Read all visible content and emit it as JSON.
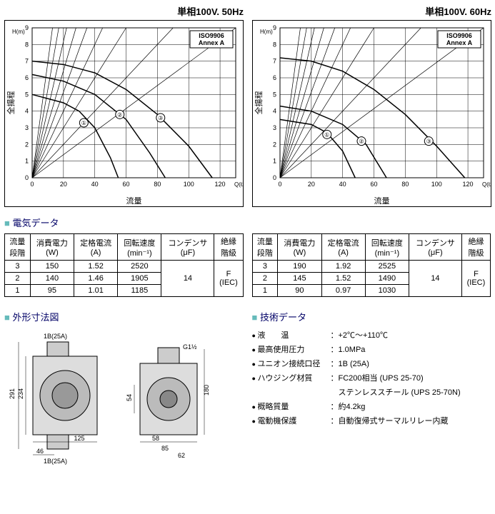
{
  "chartA": {
    "title": "単相100V. 50Hz",
    "iso": "ISO9906",
    "annex": "Annex A",
    "ylabel": "全揚程",
    "xlabel": "流量",
    "yunit": "H(m)",
    "xunit": "Q(ℓ/min)",
    "xlim": [
      0,
      130
    ],
    "xtick": 20,
    "ylim": [
      0,
      9
    ],
    "ytick": 1,
    "bg": "#ffffff",
    "grid": "#000000",
    "line_width": 1,
    "curves": [
      {
        "label": "①",
        "pts": [
          [
            0,
            5.0
          ],
          [
            20,
            4.5
          ],
          [
            30,
            4.0
          ],
          [
            40,
            3.0
          ],
          [
            50,
            1.2
          ],
          [
            55,
            0
          ]
        ]
      },
      {
        "label": "②",
        "pts": [
          [
            0,
            6.2
          ],
          [
            20,
            5.8
          ],
          [
            40,
            5.0
          ],
          [
            60,
            3.5
          ],
          [
            75,
            1.5
          ],
          [
            85,
            0
          ]
        ]
      },
      {
        "label": "③",
        "pts": [
          [
            0,
            7.0
          ],
          [
            20,
            6.8
          ],
          [
            40,
            6.3
          ],
          [
            60,
            5.3
          ],
          [
            80,
            3.8
          ],
          [
            100,
            1.9
          ],
          [
            115,
            0
          ]
        ]
      }
    ],
    "rising": [
      [
        [
          0,
          0
        ],
        [
          130,
          9
        ]
      ],
      [
        [
          0,
          0
        ],
        [
          90,
          9
        ]
      ],
      [
        [
          0,
          0
        ],
        [
          60,
          9
        ]
      ],
      [
        [
          0,
          0
        ],
        [
          45,
          9
        ]
      ],
      [
        [
          0,
          0
        ],
        [
          35,
          9
        ]
      ],
      [
        [
          0,
          0
        ],
        [
          28,
          9
        ]
      ],
      [
        [
          0,
          0
        ],
        [
          22,
          9
        ]
      ],
      [
        [
          0,
          0
        ],
        [
          17,
          9
        ]
      ],
      [
        [
          0,
          0
        ],
        [
          13,
          9
        ]
      ]
    ],
    "markers": [
      {
        "x": 33,
        "y": 3.3,
        "t": "①"
      },
      {
        "x": 56,
        "y": 3.8,
        "t": "②"
      },
      {
        "x": 82,
        "y": 3.6,
        "t": "③"
      }
    ]
  },
  "chartB": {
    "title": "単相100V. 60Hz",
    "iso": "ISO9906",
    "annex": "Annex A",
    "ylabel": "全揚程",
    "xlabel": "流量",
    "yunit": "H(m)",
    "xunit": "Q(ℓ/min)",
    "xlim": [
      0,
      130
    ],
    "xtick": 20,
    "ylim": [
      0,
      9
    ],
    "ytick": 1,
    "bg": "#ffffff",
    "grid": "#000000",
    "line_width": 1,
    "curves": [
      {
        "label": "①",
        "pts": [
          [
            0,
            3.5
          ],
          [
            20,
            3.2
          ],
          [
            30,
            2.7
          ],
          [
            40,
            1.6
          ],
          [
            48,
            0
          ]
        ]
      },
      {
        "label": "②",
        "pts": [
          [
            0,
            4.3
          ],
          [
            20,
            4.0
          ],
          [
            40,
            3.2
          ],
          [
            55,
            2.0
          ],
          [
            68,
            0
          ]
        ]
      },
      {
        "label": "③",
        "pts": [
          [
            0,
            7.2
          ],
          [
            20,
            7.0
          ],
          [
            40,
            6.4
          ],
          [
            60,
            5.3
          ],
          [
            80,
            3.8
          ],
          [
            100,
            1.9
          ],
          [
            118,
            0
          ]
        ]
      }
    ],
    "rising": [
      [
        [
          0,
          0
        ],
        [
          130,
          9
        ]
      ],
      [
        [
          0,
          0
        ],
        [
          90,
          9
        ]
      ],
      [
        [
          0,
          0
        ],
        [
          60,
          9
        ]
      ],
      [
        [
          0,
          0
        ],
        [
          45,
          9
        ]
      ],
      [
        [
          0,
          0
        ],
        [
          35,
          9
        ]
      ],
      [
        [
          0,
          0
        ],
        [
          28,
          9
        ]
      ],
      [
        [
          0,
          0
        ],
        [
          22,
          9
        ]
      ],
      [
        [
          0,
          0
        ],
        [
          17,
          9
        ]
      ],
      [
        [
          0,
          0
        ],
        [
          13,
          9
        ]
      ]
    ],
    "markers": [
      {
        "x": 30,
        "y": 2.6,
        "t": "①"
      },
      {
        "x": 52,
        "y": 2.2,
        "t": "②"
      },
      {
        "x": 95,
        "y": 2.2,
        "t": "③"
      }
    ]
  },
  "elecTitle": "電気データ",
  "cols": [
    "流量\n段階",
    "消費電力\n(W)",
    "定格電流\n(A)",
    "回転速度\n(min⁻¹)",
    "コンデンサ\n(μF)",
    "絶縁\n階級"
  ],
  "t50": {
    "rows": [
      [
        "3",
        "150",
        "1.52",
        "2520"
      ],
      [
        "2",
        "140",
        "1.46",
        "1905"
      ],
      [
        "1",
        "95",
        "1.01",
        "1185"
      ]
    ],
    "cap": "14",
    "ins": "F\n(IEC)"
  },
  "t60": {
    "rows": [
      [
        "3",
        "190",
        "1.92",
        "2525"
      ],
      [
        "2",
        "145",
        "1.52",
        "1490"
      ],
      [
        "1",
        "90",
        "0.97",
        "1030"
      ]
    ],
    "cap": "14",
    "ins": "F\n(IEC)"
  },
  "dimTitle": "外形寸法図",
  "dim": {
    "labels": [
      "1B(25A)",
      "1B(25A)",
      "G1½",
      "291",
      "234",
      "46",
      "125",
      "54",
      "58",
      "85",
      "62",
      "180"
    ]
  },
  "techTitle": "技術データ",
  "tech": [
    {
      "l": "液　　温",
      "v": "：+2℃～+110℃"
    },
    {
      "l": "最高使用圧力",
      "v": "：1.0MPa"
    },
    {
      "l": "ユニオン接続口径",
      "v": "：1B (25A)"
    },
    {
      "l": "ハウジング材質",
      "v": "：FC200相当 (UPS 25-70)"
    },
    {
      "l": "",
      "v": "　ステンレススチール (UPS 25-70N)"
    },
    {
      "l": "概略質量",
      "v": "：約4.2kg"
    },
    {
      "l": "電動機保護",
      "v": "：自動復帰式サーマルリレー内蔵"
    }
  ]
}
